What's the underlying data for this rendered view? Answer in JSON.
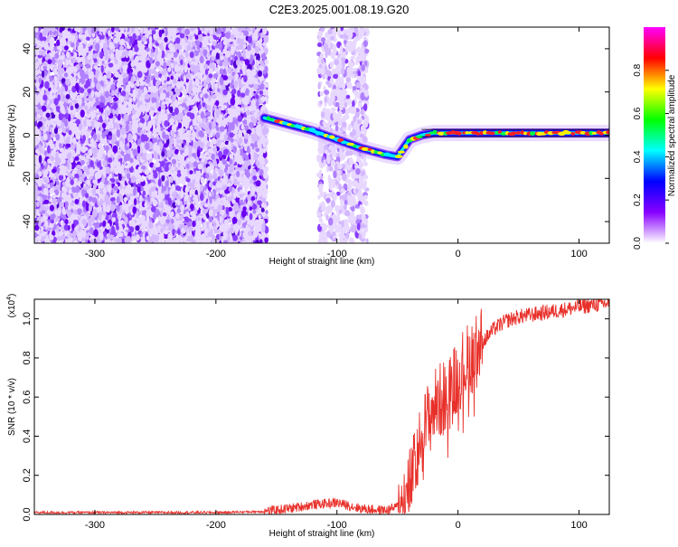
{
  "title": "C2E3.2025.001.08.19.G20",
  "chart_data": [
    {
      "type": "heatmap",
      "xlabel": "Height of straight line (km)",
      "ylabel": "Frequency (Hz)",
      "xlim": [
        -350,
        125
      ],
      "ylim": [
        -50,
        50
      ],
      "xticks": [
        -300,
        -200,
        -100,
        0,
        100
      ],
      "yticks": [
        -40,
        -20,
        0,
        20,
        40
      ],
      "colorbar": {
        "label": "Normalized spectral amplitude",
        "range": [
          0,
          1
        ],
        "ticks": [
          "0.0",
          "0.2",
          "0.4",
          "0.6",
          "0.8"
        ],
        "colors": [
          "#ffffff",
          "#8800ff",
          "#0000ff",
          "#00ffff",
          "#00ff00",
          "#ffff00",
          "#ff0000",
          "#ff00ff"
        ]
      },
      "noise_regions": [
        {
          "x": [
            -350,
            -158
          ],
          "y": [
            -50,
            50
          ],
          "level": 0.25
        },
        {
          "x": [
            -115,
            -75
          ],
          "y": [
            -50,
            50
          ],
          "level": 0.12
        }
      ],
      "signal_track": [
        {
          "x": -160,
          "y": 8
        },
        {
          "x": -140,
          "y": 5
        },
        {
          "x": -120,
          "y": 2
        },
        {
          "x": -100,
          "y": -2
        },
        {
          "x": -80,
          "y": -6
        },
        {
          "x": -60,
          "y": -9
        },
        {
          "x": -50,
          "y": -10
        },
        {
          "x": -40,
          "y": -2
        },
        {
          "x": -30,
          "y": 0
        },
        {
          "x": -20,
          "y": 1
        },
        {
          "x": 0,
          "y": 1
        },
        {
          "x": 50,
          "y": 1
        },
        {
          "x": 125,
          "y": 1
        }
      ]
    },
    {
      "type": "line",
      "xlabel": "Height of straight line (km)",
      "ylabel": "SNR (10 * v/v)",
      "y_multiplier": "(x10",
      "y_multiplier_exp": "4",
      "y_multiplier_close": ")",
      "xlim": [
        -350,
        125
      ],
      "ylim": [
        0,
        1.1
      ],
      "xticks": [
        -300,
        -200,
        -100,
        0,
        100
      ],
      "yticks": [
        "0.0",
        "0.2",
        "0.4",
        "0.6",
        "0.8",
        "1.0"
      ],
      "color": "#e8302a",
      "series": [
        {
          "x": [
            -350,
            -250,
            -200,
            -160,
            -140,
            -120,
            -100,
            -80,
            -60,
            -50,
            -45,
            -40,
            -35,
            -30,
            -25,
            -20,
            -15,
            -10,
            -5,
            0,
            10,
            20,
            30,
            40,
            50,
            60,
            70,
            80,
            90,
            100,
            110,
            125
          ],
          "values": [
            0.01,
            0.01,
            0.01,
            0.015,
            0.03,
            0.05,
            0.06,
            0.03,
            0.02,
            0.04,
            0.08,
            0.15,
            0.25,
            0.4,
            0.48,
            0.55,
            0.58,
            0.6,
            0.65,
            0.72,
            0.8,
            0.88,
            0.95,
            0.99,
            1.01,
            1.02,
            1.03,
            1.04,
            1.05,
            1.06,
            1.07,
            1.08
          ]
        }
      ]
    }
  ]
}
